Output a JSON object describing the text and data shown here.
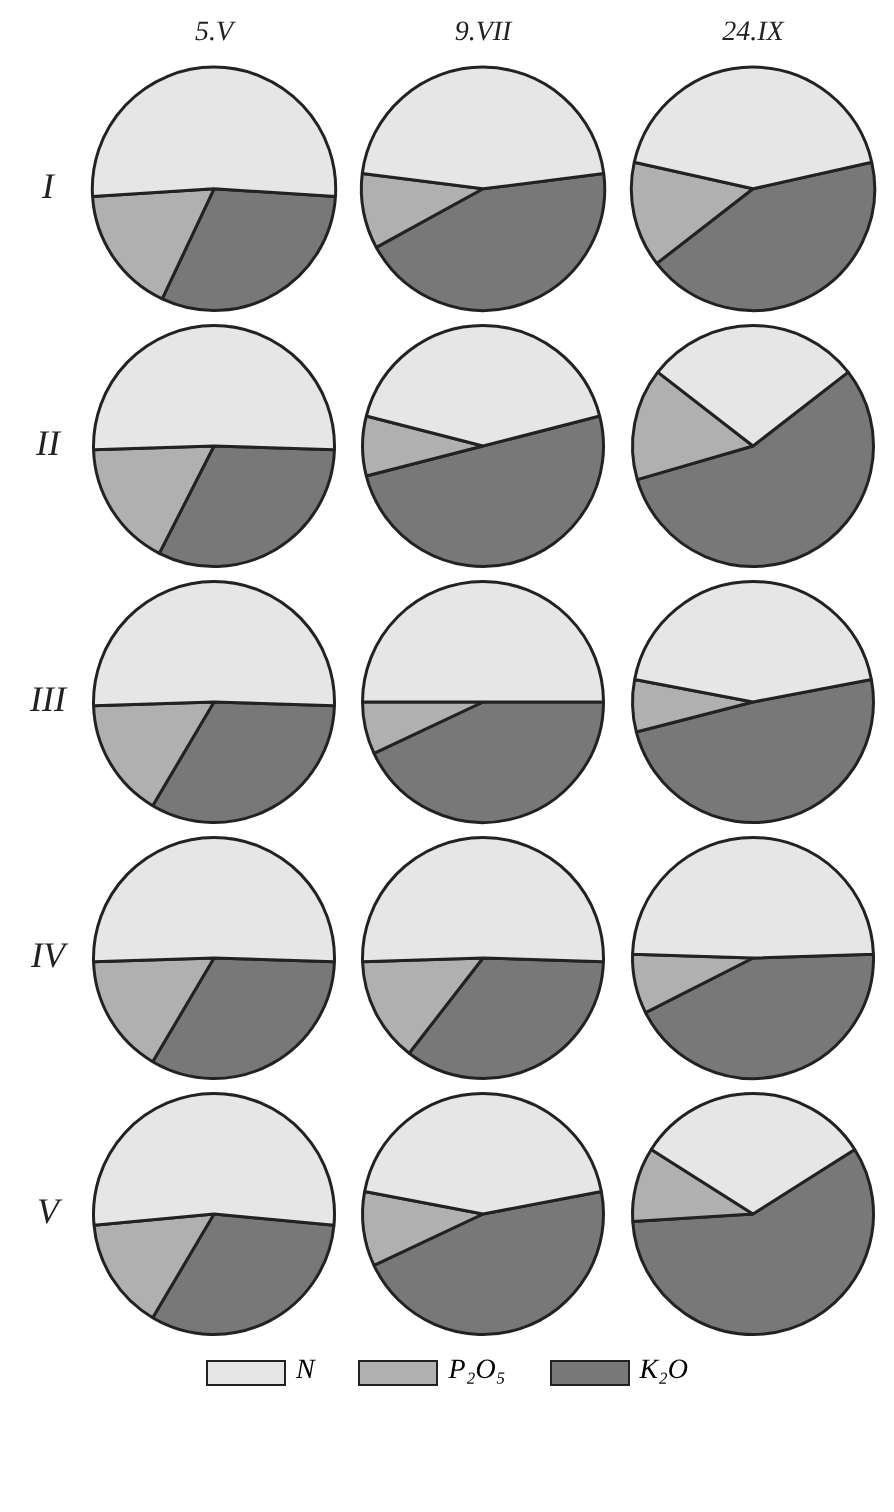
{
  "chart_data": [
    {
      "type": "pie",
      "title": "5.V",
      "ylabel": "I",
      "legend": "bottom",
      "categories": [
        "N",
        "P₂O₅",
        "K₂O"
      ],
      "values": [
        52,
        17,
        31
      ],
      "colors": [
        "#e6e6e6",
        "#b0b0b0",
        "#787878"
      ]
    },
    {
      "type": "pie",
      "title": "9.VII",
      "categories": [
        null,
        null,
        null
      ],
      "values": [
        46,
        10,
        44
      ],
      "colors": [
        "#e6e6e6",
        "#b0b0b0",
        "#787878"
      ]
    },
    {
      "type": "pie",
      "title": "24.IX",
      "categories": [
        null,
        null,
        null
      ],
      "values": [
        43,
        14,
        43
      ],
      "colors": [
        "#e6e6e6",
        "#b0b0b0",
        "#787878"
      ]
    },
    {
      "type": "pie",
      "ylabel": "II",
      "categories": [
        null,
        null,
        null
      ],
      "values": [
        51,
        17,
        32
      ],
      "colors": [
        "#e6e6e6",
        "#b0b0b0",
        "#787878"
      ]
    },
    {
      "type": "pie",
      "categories": [
        null,
        null,
        null
      ],
      "values": [
        42,
        8,
        50
      ],
      "colors": [
        "#e6e6e6",
        "#b0b0b0",
        "#787878"
      ]
    },
    {
      "type": "pie",
      "categories": [
        null,
        null,
        null
      ],
      "values": [
        29,
        15,
        56
      ],
      "colors": [
        "#e6e6e6",
        "#b0b0b0",
        "#787878"
      ]
    },
    {
      "type": "pie",
      "ylabel": "III",
      "categories": [
        null,
        null,
        null
      ],
      "values": [
        51,
        16,
        33
      ],
      "colors": [
        "#e6e6e6",
        "#b0b0b0",
        "#787878"
      ]
    },
    {
      "type": "pie",
      "categories": [
        null,
        null,
        null
      ],
      "values": [
        50,
        7,
        43
      ],
      "colors": [
        "#e6e6e6",
        "#b0b0b0",
        "#787878"
      ]
    },
    {
      "type": "pie",
      "categories": [
        null,
        null,
        null
      ],
      "values": [
        44,
        7,
        49
      ],
      "colors": [
        "#e6e6e6",
        "#b0b0b0",
        "#787878"
      ]
    },
    {
      "type": "pie",
      "ylabel": "IV",
      "categories": [
        null,
        null,
        null
      ],
      "values": [
        51,
        16,
        33
      ],
      "colors": [
        "#e6e6e6",
        "#b0b0b0",
        "#787878"
      ]
    },
    {
      "type": "pie",
      "categories": [
        null,
        null,
        null
      ],
      "values": [
        51,
        14,
        35
      ],
      "colors": [
        "#e6e6e6",
        "#b0b0b0",
        "#787878"
      ]
    },
    {
      "type": "pie",
      "categories": [
        null,
        null,
        null
      ],
      "values": [
        49,
        8,
        43
      ],
      "colors": [
        "#e6e6e6",
        "#b0b0b0",
        "#787878"
      ]
    },
    {
      "type": "pie",
      "ylabel": "V",
      "categories": [
        null,
        null,
        null
      ],
      "values": [
        53,
        15,
        32
      ],
      "colors": [
        "#e6e6e6",
        "#b0b0b0",
        "#787878"
      ]
    },
    {
      "type": "pie",
      "categories": [
        null,
        null,
        null
      ],
      "values": [
        44,
        10,
        46
      ],
      "colors": [
        "#e6e6e6",
        "#b0b0b0",
        "#787878"
      ]
    },
    {
      "type": "pie",
      "categories": [
        null,
        null,
        null
      ],
      "values": [
        32,
        10,
        58
      ],
      "colors": [
        "#e6e6e6",
        "#b0b0b0",
        "#787878"
      ]
    }
  ]
}
